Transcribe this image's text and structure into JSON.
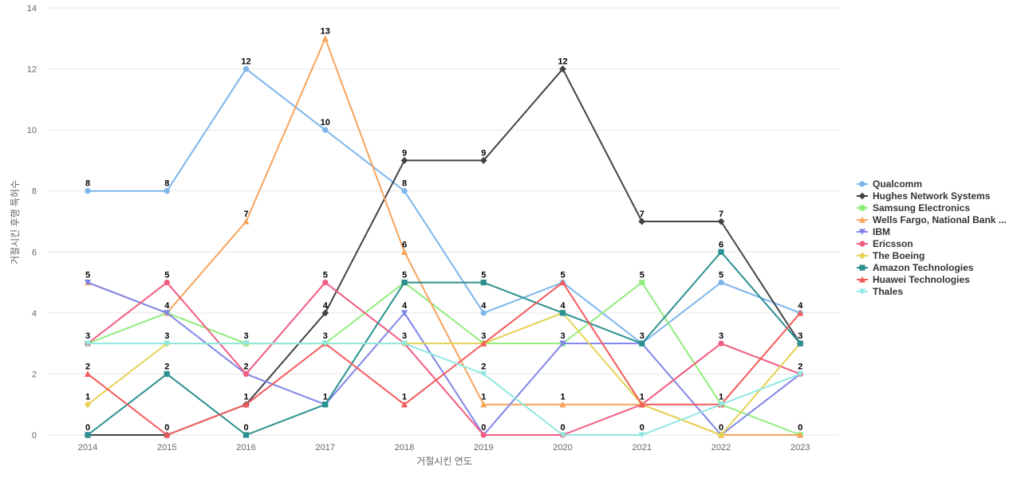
{
  "chart_data": {
    "type": "line",
    "title": "",
    "xlabel": "거절시킨 연도",
    "ylabel": "거절시킨 후행 특허수",
    "ylim": [
      0,
      14
    ],
    "yticks": [
      0,
      2,
      4,
      6,
      8,
      10,
      12,
      14
    ],
    "categories": [
      "2014",
      "2015",
      "2016",
      "2017",
      "2018",
      "2019",
      "2020",
      "2021",
      "2022",
      "2023"
    ],
    "legend_position": "right",
    "series": [
      {
        "name": "Qualcomm",
        "color": "#7cb5ec",
        "marker": "circle",
        "values": [
          8,
          8,
          12,
          10,
          8,
          4,
          5,
          3,
          5,
          4
        ]
      },
      {
        "name": "Hughes Network Systems",
        "color": "#434348",
        "marker": "diamond",
        "values": [
          0,
          0,
          1,
          4,
          9,
          9,
          12,
          7,
          7,
          3
        ]
      },
      {
        "name": "Samsung Electronics",
        "color": "#90ed7d",
        "marker": "square",
        "values": [
          3,
          4,
          3,
          3,
          5,
          3,
          3,
          5,
          1,
          0
        ]
      },
      {
        "name": "Wells Fargo, National Bank ...",
        "color": "#f7a35c",
        "marker": "triangle",
        "values": [
          5,
          4,
          7,
          13,
          6,
          1,
          1,
          1,
          0,
          0
        ]
      },
      {
        "name": "IBM",
        "color": "#8085e9",
        "marker": "triangle-down",
        "values": [
          5,
          4,
          2,
          1,
          4,
          0,
          3,
          3,
          0,
          2
        ]
      },
      {
        "name": "Ericsson",
        "color": "#f15c80",
        "marker": "circle",
        "values": [
          3,
          5,
          2,
          5,
          3,
          0,
          0,
          1,
          3,
          2
        ]
      },
      {
        "name": "The Boeing",
        "color": "#e4d354",
        "marker": "diamond",
        "values": [
          1,
          3,
          3,
          3,
          3,
          3,
          4,
          1,
          0,
          3
        ]
      },
      {
        "name": "Amazon Technologies",
        "color": "#2b908f",
        "marker": "square",
        "values": [
          0,
          2,
          0,
          1,
          5,
          5,
          4,
          3,
          6,
          3
        ]
      },
      {
        "name": "Huawei Technologies",
        "color": "#f45b5b",
        "marker": "triangle",
        "values": [
          2,
          0,
          1,
          3,
          1,
          3,
          5,
          1,
          1,
          4
        ]
      },
      {
        "name": "Thales",
        "color": "#91e8e1",
        "marker": "triangle-down",
        "values": [
          3,
          3,
          3,
          3,
          3,
          2,
          0,
          0,
          1,
          2
        ]
      }
    ],
    "data_labels": [
      {
        "category": "2014",
        "values": [
          8,
          5,
          3,
          2,
          1,
          0
        ]
      },
      {
        "category": "2015",
        "values": [
          8,
          5,
          4,
          3,
          2,
          0
        ]
      },
      {
        "category": "2016",
        "values": [
          12,
          7,
          3,
          2,
          1,
          0
        ]
      },
      {
        "category": "2017",
        "values": [
          13,
          10,
          5,
          4,
          3,
          1
        ]
      },
      {
        "category": "2018",
        "values": [
          9,
          8,
          6,
          5,
          4,
          3,
          1
        ]
      },
      {
        "category": "2019",
        "values": [
          9,
          5,
          4,
          3,
          2,
          1,
          0
        ]
      },
      {
        "category": "2020",
        "values": [
          12,
          5,
          4,
          3,
          1,
          0
        ]
      },
      {
        "category": "2021",
        "values": [
          7,
          5,
          3,
          1,
          0
        ]
      },
      {
        "category": "2022",
        "values": [
          7,
          6,
          5,
          3,
          1,
          0
        ]
      },
      {
        "category": "2023",
        "values": [
          4,
          3,
          2,
          0
        ]
      }
    ]
  }
}
